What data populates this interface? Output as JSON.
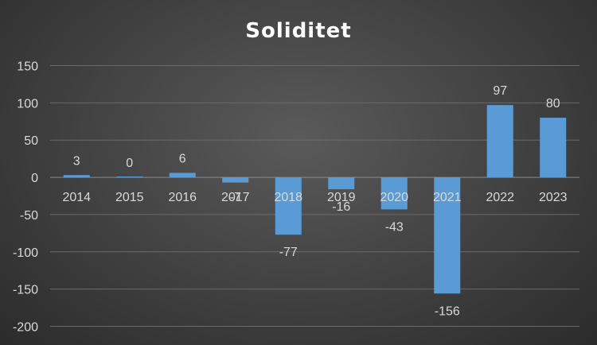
{
  "chart_data": {
    "type": "bar",
    "title": "Soliditet",
    "categories": [
      "2014",
      "2015",
      "2016",
      "2017",
      "2018",
      "2019",
      "2020",
      "2021",
      "2022",
      "2023"
    ],
    "values": [
      3,
      0,
      6,
      -7,
      -77,
      -16,
      -43,
      -156,
      97,
      80
    ],
    "data_labels": [
      "3",
      "0",
      "6",
      "-7",
      "-77",
      "-16",
      "-43",
      "-156",
      "97",
      "80"
    ],
    "yticks": [
      "150",
      "100",
      "50",
      "0",
      "-50",
      "-100",
      "-150",
      "-200"
    ],
    "ylim": [
      -200,
      150
    ],
    "grid": true,
    "bar_color": "#5b9bd5",
    "xlabel": "",
    "ylabel": ""
  }
}
